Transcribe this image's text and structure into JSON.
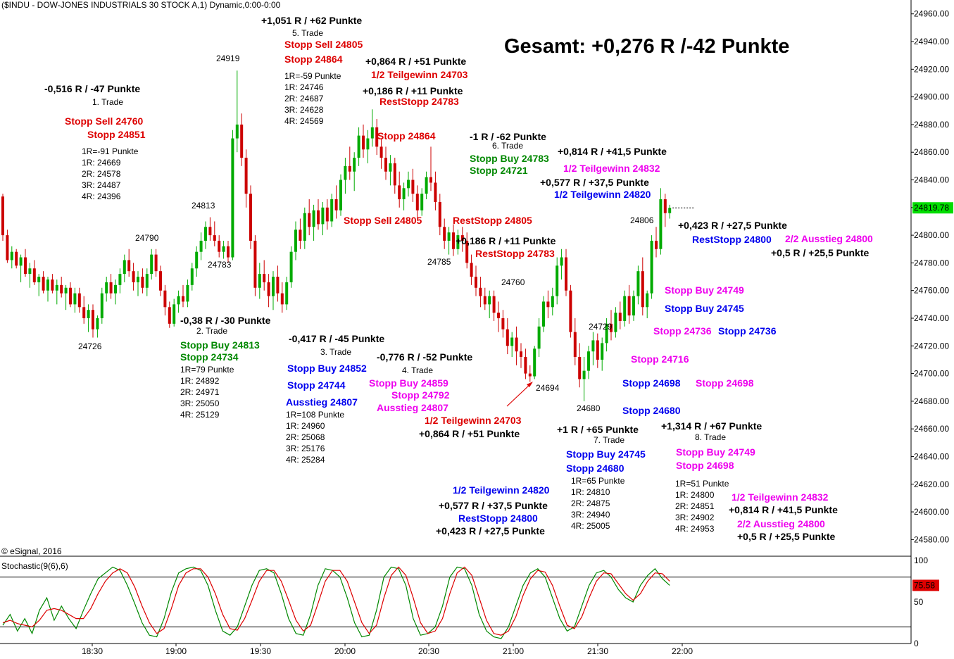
{
  "chart_title": "($INDU - DOW-JONES INDUSTRIALS 30 STOCK A,1) Dynamic,0:00-0:00",
  "copyright": "© eSignal, 2016",
  "price_axis": {
    "ticks": [
      "24960.00",
      "24940.00",
      "24920.00",
      "24900.00",
      "24880.00",
      "24860.00",
      "24840.00",
      "24820.00",
      "24800.00",
      "24780.00",
      "24760.00",
      "24740.00",
      "24720.00",
      "24700.00",
      "24680.00",
      "24660.00",
      "24640.00",
      "24620.00",
      "24600.00",
      "24580.00"
    ],
    "last_label": "24819.78"
  },
  "stoch_axis": {
    "ticks": [
      "100",
      "50",
      "0"
    ],
    "last_label": "75.58"
  },
  "stoch_title": "Stochastic(9(6),6)",
  "time_axis": {
    "ticks": [
      "18:30",
      "19:00",
      "19:30",
      "20:00",
      "20:30",
      "21:00",
      "21:30",
      "22:00"
    ]
  },
  "colors": {
    "up": "#00aa00",
    "down": "#cc0000",
    "k_line": "#008800",
    "d_line": "#dd0000",
    "red": "#dd0000",
    "green": "#008800",
    "blue": "#0000ee",
    "magenta": "#ee00ee",
    "last_bg": "#00dd00",
    "stoch_last_bg": "#dd0000"
  },
  "chart_data": {
    "type": "candlestick",
    "x_range": [
      "18:05",
      "22:22"
    ],
    "ylim": [
      24570,
      24968
    ],
    "candles": [
      [
        24828,
        24830,
        24796,
        24800
      ],
      [
        24800,
        24804,
        24780,
        24782
      ],
      [
        24782,
        24792,
        24776,
        24788
      ],
      [
        24788,
        24790,
        24776,
        24778
      ],
      [
        24778,
        24786,
        24766,
        24784
      ],
      [
        24784,
        24790,
        24770,
        24772
      ],
      [
        24772,
        24780,
        24762,
        24776
      ],
      [
        24776,
        24782,
        24764,
        24766
      ],
      [
        24766,
        24772,
        24756,
        24770
      ],
      [
        24770,
        24774,
        24758,
        24760
      ],
      [
        24760,
        24770,
        24752,
        24768
      ],
      [
        24768,
        24772,
        24758,
        24760
      ],
      [
        24760,
        24768,
        24750,
        24764
      ],
      [
        24764,
        24770,
        24755,
        24758
      ],
      [
        24758,
        24764,
        24746,
        24762
      ],
      [
        24762,
        24766,
        24748,
        24750
      ],
      [
        24750,
        24762,
        24744,
        24758
      ],
      [
        24758,
        24762,
        24744,
        24748
      ],
      [
        24748,
        24756,
        24736,
        24740
      ],
      [
        24740,
        24750,
        24730,
        24746
      ],
      [
        24746,
        24750,
        24726,
        24732
      ],
      [
        24732,
        24742,
        24726,
        24740
      ],
      [
        24740,
        24762,
        24736,
        24758
      ],
      [
        24758,
        24770,
        24752,
        24766
      ],
      [
        24766,
        24772,
        24754,
        24758
      ],
      [
        24758,
        24768,
        24750,
        24764
      ],
      [
        24764,
        24776,
        24758,
        24772
      ],
      [
        24772,
        24786,
        24766,
        24782
      ],
      [
        24782,
        24790,
        24770,
        24774
      ],
      [
        24774,
        24780,
        24760,
        24766
      ],
      [
        24766,
        24774,
        24756,
        24770
      ],
      [
        24770,
        24776,
        24758,
        24762
      ],
      [
        24762,
        24776,
        24756,
        24772
      ],
      [
        24772,
        24790,
        24768,
        24786
      ],
      [
        24786,
        24790,
        24770,
        24774
      ],
      [
        24774,
        24778,
        24756,
        24760
      ],
      [
        24760,
        24764,
        24742,
        24748
      ],
      [
        24748,
        24752,
        24733,
        24736
      ],
      [
        24736,
        24754,
        24734,
        24750
      ],
      [
        24750,
        24760,
        24744,
        24756
      ],
      [
        24756,
        24764,
        24748,
        24752
      ],
      [
        24752,
        24768,
        24748,
        24764
      ],
      [
        24764,
        24780,
        24760,
        24776
      ],
      [
        24776,
        24792,
        24770,
        24788
      ],
      [
        24788,
        24802,
        24782,
        24796
      ],
      [
        24796,
        24810,
        24790,
        24806
      ],
      [
        24806,
        24813,
        24796,
        24800
      ],
      [
        24800,
        24810,
        24792,
        24796
      ],
      [
        24796,
        24800,
        24784,
        24788
      ],
      [
        24788,
        24796,
        24783,
        24792
      ],
      [
        24792,
        24796,
        24780,
        24784
      ],
      [
        24784,
        24876,
        24782,
        24870
      ],
      [
        24870,
        24919,
        24860,
        24880
      ],
      [
        24880,
        24888,
        24850,
        24856
      ],
      [
        24856,
        24862,
        24820,
        24830
      ],
      [
        24830,
        24836,
        24790,
        24796
      ],
      [
        24796,
        24800,
        24756,
        24762
      ],
      [
        24762,
        24780,
        24754,
        24772
      ],
      [
        24772,
        24782,
        24760,
        24766
      ],
      [
        24766,
        24772,
        24748,
        24756
      ],
      [
        24756,
        24774,
        24746,
        24770
      ],
      [
        24770,
        24778,
        24752,
        24758
      ],
      [
        24758,
        24766,
        24744,
        24750
      ],
      [
        24750,
        24770,
        24746,
        24766
      ],
      [
        24766,
        24792,
        24762,
        24788
      ],
      [
        24788,
        24810,
        24782,
        24804
      ],
      [
        24804,
        24812,
        24790,
        24796
      ],
      [
        24796,
        24820,
        24790,
        24816
      ],
      [
        24816,
        24826,
        24800,
        24806
      ],
      [
        24806,
        24822,
        24796,
        24818
      ],
      [
        24818,
        24826,
        24804,
        24808
      ],
      [
        24808,
        24824,
        24800,
        24820
      ],
      [
        24820,
        24826,
        24804,
        24810
      ],
      [
        24810,
        24830,
        24806,
        24826
      ],
      [
        24826,
        24836,
        24812,
        24818
      ],
      [
        24818,
        24844,
        24814,
        24840
      ],
      [
        24840,
        24856,
        24830,
        24850
      ],
      [
        24850,
        24864,
        24840,
        24846
      ],
      [
        24846,
        24860,
        24832,
        24856
      ],
      [
        24856,
        24878,
        24850,
        24872
      ],
      [
        24872,
        24880,
        24856,
        24862
      ],
      [
        24862,
        24876,
        24852,
        24870
      ],
      [
        24870,
        24891,
        24864,
        24878
      ],
      [
        24878,
        24884,
        24858,
        24864
      ],
      [
        24864,
        24870,
        24848,
        24856
      ],
      [
        24856,
        24864,
        24840,
        24846
      ],
      [
        24846,
        24858,
        24836,
        24852
      ],
      [
        24852,
        24856,
        24830,
        24836
      ],
      [
        24836,
        24846,
        24820,
        24826
      ],
      [
        24826,
        24838,
        24818,
        24834
      ],
      [
        24834,
        24846,
        24828,
        24840
      ],
      [
        24840,
        24848,
        24824,
        24830
      ],
      [
        24830,
        24836,
        24812,
        24818
      ],
      [
        24818,
        24834,
        24814,
        24830
      ],
      [
        24830,
        24846,
        24826,
        24842
      ],
      [
        24842,
        24864,
        24832,
        24838
      ],
      [
        24838,
        24846,
        24818,
        24824
      ],
      [
        24824,
        24830,
        24800,
        24806
      ],
      [
        24806,
        24812,
        24790,
        24796
      ],
      [
        24796,
        24806,
        24786,
        24802
      ],
      [
        24802,
        24808,
        24785,
        24790
      ],
      [
        24790,
        24804,
        24786,
        24800
      ],
      [
        24800,
        24806,
        24788,
        24796
      ],
      [
        24796,
        24802,
        24776,
        24780
      ],
      [
        24780,
        24786,
        24764,
        24770
      ],
      [
        24770,
        24778,
        24756,
        24762
      ],
      [
        24762,
        24770,
        24748,
        24756
      ],
      [
        24756,
        24762,
        24746,
        24750
      ],
      [
        24750,
        24760,
        24740,
        24756
      ],
      [
        24756,
        24760,
        24738,
        24744
      ],
      [
        24744,
        24752,
        24730,
        24740
      ],
      [
        24740,
        24746,
        24726,
        24732
      ],
      [
        24732,
        24740,
        24714,
        24720
      ],
      [
        24720,
        24730,
        24712,
        24726
      ],
      [
        24726,
        24734,
        24706,
        24716
      ],
      [
        24716,
        24722,
        24704,
        24712
      ],
      [
        24712,
        24718,
        24696,
        24700
      ],
      [
        24700,
        24706,
        24694,
        24698
      ],
      [
        24698,
        24720,
        24696,
        24718
      ],
      [
        24718,
        24740,
        24712,
        24734
      ],
      [
        24734,
        24756,
        24730,
        24752
      ],
      [
        24752,
        24760,
        24740,
        24748
      ],
      [
        24748,
        24762,
        24742,
        24756
      ],
      [
        24756,
        24784,
        24750,
        24778
      ],
      [
        24778,
        24790,
        24768,
        24784
      ],
      [
        24784,
        24790,
        24756,
        24760
      ],
      [
        24760,
        24764,
        24726,
        24730
      ],
      [
        24730,
        24740,
        24706,
        24712
      ],
      [
        24712,
        24722,
        24690,
        24696
      ],
      [
        24696,
        24712,
        24680,
        24702
      ],
      [
        24702,
        24720,
        24696,
        24716
      ],
      [
        24716,
        24730,
        24706,
        24724
      ],
      [
        24724,
        24729,
        24704,
        24710
      ],
      [
        24710,
        24726,
        24702,
        24722
      ],
      [
        24722,
        24740,
        24716,
        24736
      ],
      [
        24736,
        24746,
        24724,
        24730
      ],
      [
        24730,
        24748,
        24726,
        24744
      ],
      [
        24744,
        24752,
        24732,
        24738
      ],
      [
        24738,
        24760,
        24734,
        24756
      ],
      [
        24756,
        24764,
        24736,
        24742
      ],
      [
        24742,
        24760,
        24738,
        24756
      ],
      [
        24756,
        24778,
        24750,
        24774
      ],
      [
        24774,
        24784,
        24742,
        24748
      ],
      [
        24748,
        24760,
        24740,
        24758
      ],
      [
        24758,
        24800,
        24754,
        24796
      ],
      [
        24796,
        24806,
        24784,
        24790
      ],
      [
        24790,
        24834,
        24786,
        24826
      ],
      [
        24826,
        24830,
        24806,
        24816
      ],
      [
        24816,
        24822,
        24812,
        24819.78
      ]
    ],
    "stochastic": {
      "ylim": [
        0,
        100
      ],
      "levels": [
        80,
        20
      ],
      "k": [
        22,
        35,
        15,
        30,
        12,
        40,
        55,
        28,
        45,
        30,
        18,
        40,
        60,
        78,
        85,
        92,
        88,
        70,
        48,
        25,
        10,
        8,
        30,
        62,
        85,
        90,
        92,
        88,
        70,
        40,
        15,
        10,
        20,
        45,
        70,
        88,
        90,
        85,
        60,
        30,
        12,
        10,
        35,
        70,
        90,
        88,
        80,
        55,
        25,
        8,
        10,
        40,
        80,
        92,
        90,
        70,
        30,
        10,
        12,
        20,
        45,
        80,
        92,
        90,
        70,
        35,
        15,
        8,
        6,
        20,
        45,
        70,
        85,
        90,
        80,
        55,
        30,
        15,
        20,
        45,
        70,
        85,
        88,
        80,
        65,
        55,
        50,
        70,
        82,
        90,
        78,
        70
      ],
      "d": [
        25,
        28,
        24,
        22,
        20,
        28,
        40,
        42,
        40,
        35,
        30,
        30,
        42,
        60,
        75,
        85,
        90,
        85,
        68,
        45,
        25,
        12,
        18,
        42,
        70,
        85,
        90,
        90,
        80,
        60,
        35,
        18,
        16,
        30,
        52,
        75,
        88,
        88,
        75,
        52,
        28,
        15,
        22,
        48,
        75,
        88,
        88,
        75,
        50,
        25,
        12,
        22,
        55,
        82,
        92,
        82,
        55,
        25,
        12,
        15,
        30,
        60,
        85,
        92,
        82,
        55,
        28,
        12,
        10,
        15,
        32,
        58,
        78,
        88,
        86,
        70,
        45,
        22,
        18,
        32,
        55,
        75,
        85,
        84,
        72,
        60,
        52,
        60,
        75,
        85,
        84,
        75
      ]
    }
  },
  "gesamt": "Gesamt: +0,276 R /-42 Punkte",
  "price_labels": [
    "24919",
    "24813",
    "24790",
    "24783",
    "24726",
    "24785",
    "24760",
    "24694",
    "24729",
    "24680",
    "24806"
  ],
  "annotations": [
    "-0,516 R / -47 Punkte",
    "1. Trade",
    "Stopp Sell 24760",
    "Stopp 24851",
    "1R=-91 Punkte",
    "1R: 24669",
    "2R: 24578",
    "3R: 24487",
    "4R: 24396",
    "-0,38 R / -30 Punkte",
    "2. Trade",
    "Stopp Buy 24813",
    "Stopp 24734",
    "1R=79 Punkte",
    "1R: 24892",
    "2R: 24971",
    "3R: 25050",
    "4R: 25129",
    "+1,051 R / +62 Punkte",
    "5. Trade",
    "Stopp Sell 24805",
    "Stopp 24864",
    "1R=-59 Punkte",
    "1R: 24746",
    "2R: 24687",
    "3R: 24628",
    "4R: 24569",
    "+0,864 R / +51 Punkte",
    "1/2 Teilgewinn 24703",
    "+0,186 R / +11 Punkte",
    "RestStopp 24783",
    "Stopp 24864",
    "-1 R / -62 Punkte",
    "6. Trade",
    "Stopp Buy 24783",
    "Stopp 24721",
    "+0,814 R / +41,5 Punkte",
    "1/2 Teilgewinn 24832",
    "+0,577 R / +37,5 Punkte",
    "1/2 Teilgewinn 24820",
    "Stopp Sell 24805",
    "RestStopp 24805",
    "+0,186 R / +11 Punkte",
    "RestStopp 24783",
    "+0,423 R / +27,5 Punkte",
    "RestStopp 24800",
    "2/2 Ausstieg 24800",
    "+0,5 R / +25,5 Punkte",
    "Stopp Buy 24749",
    "Stopp Buy 24745",
    "Stopp 24736",
    "Stopp 24736",
    "Stopp 24716",
    "Stopp 24698",
    "Stopp 24698",
    "Stopp 24680",
    "-0,417 R / -45 Punkte",
    "3. Trade",
    "Stopp Buy 24852",
    "Stopp 24744",
    "Ausstieg 24807",
    "1R=108 Punkte",
    "1R: 24960",
    "2R: 25068",
    "3R: 25176",
    "4R: 25284",
    "-0,776 R / -52 Punkte",
    "4. Trade",
    "Stopp Buy 24859",
    "Stopp 24792",
    "Ausstieg 24807",
    "1/2 Teilgewinn 24703",
    "+0,864 R / +51 Punkte",
    "+1 R / +65 Punkte",
    "7. Trade",
    "Stopp Buy 24745",
    "Stopp 24680",
    "1R=65 Punkte",
    "1R: 24810",
    "2R: 24875",
    "3R: 24940",
    "4R: 25005",
    "1/2 Teilgewinn 24820",
    "+0,577 R / +37,5 Punkte",
    "RestStopp 24800",
    "+0,423 R / +27,5 Punkte",
    "+1,314 R / +67 Punkte",
    "8. Trade",
    "Stopp Buy 24749",
    "Stopp 24698",
    "1R=51 Punkte",
    "1R: 24800",
    "2R: 24851",
    "3R: 24902",
    "4R: 24953",
    "1/2 Teilgewinn 24832",
    "+0,814 R / +41,5 Punkte",
    "2/2 Ausstieg 24800",
    "+0,5 R / +25,5 Punkte"
  ]
}
